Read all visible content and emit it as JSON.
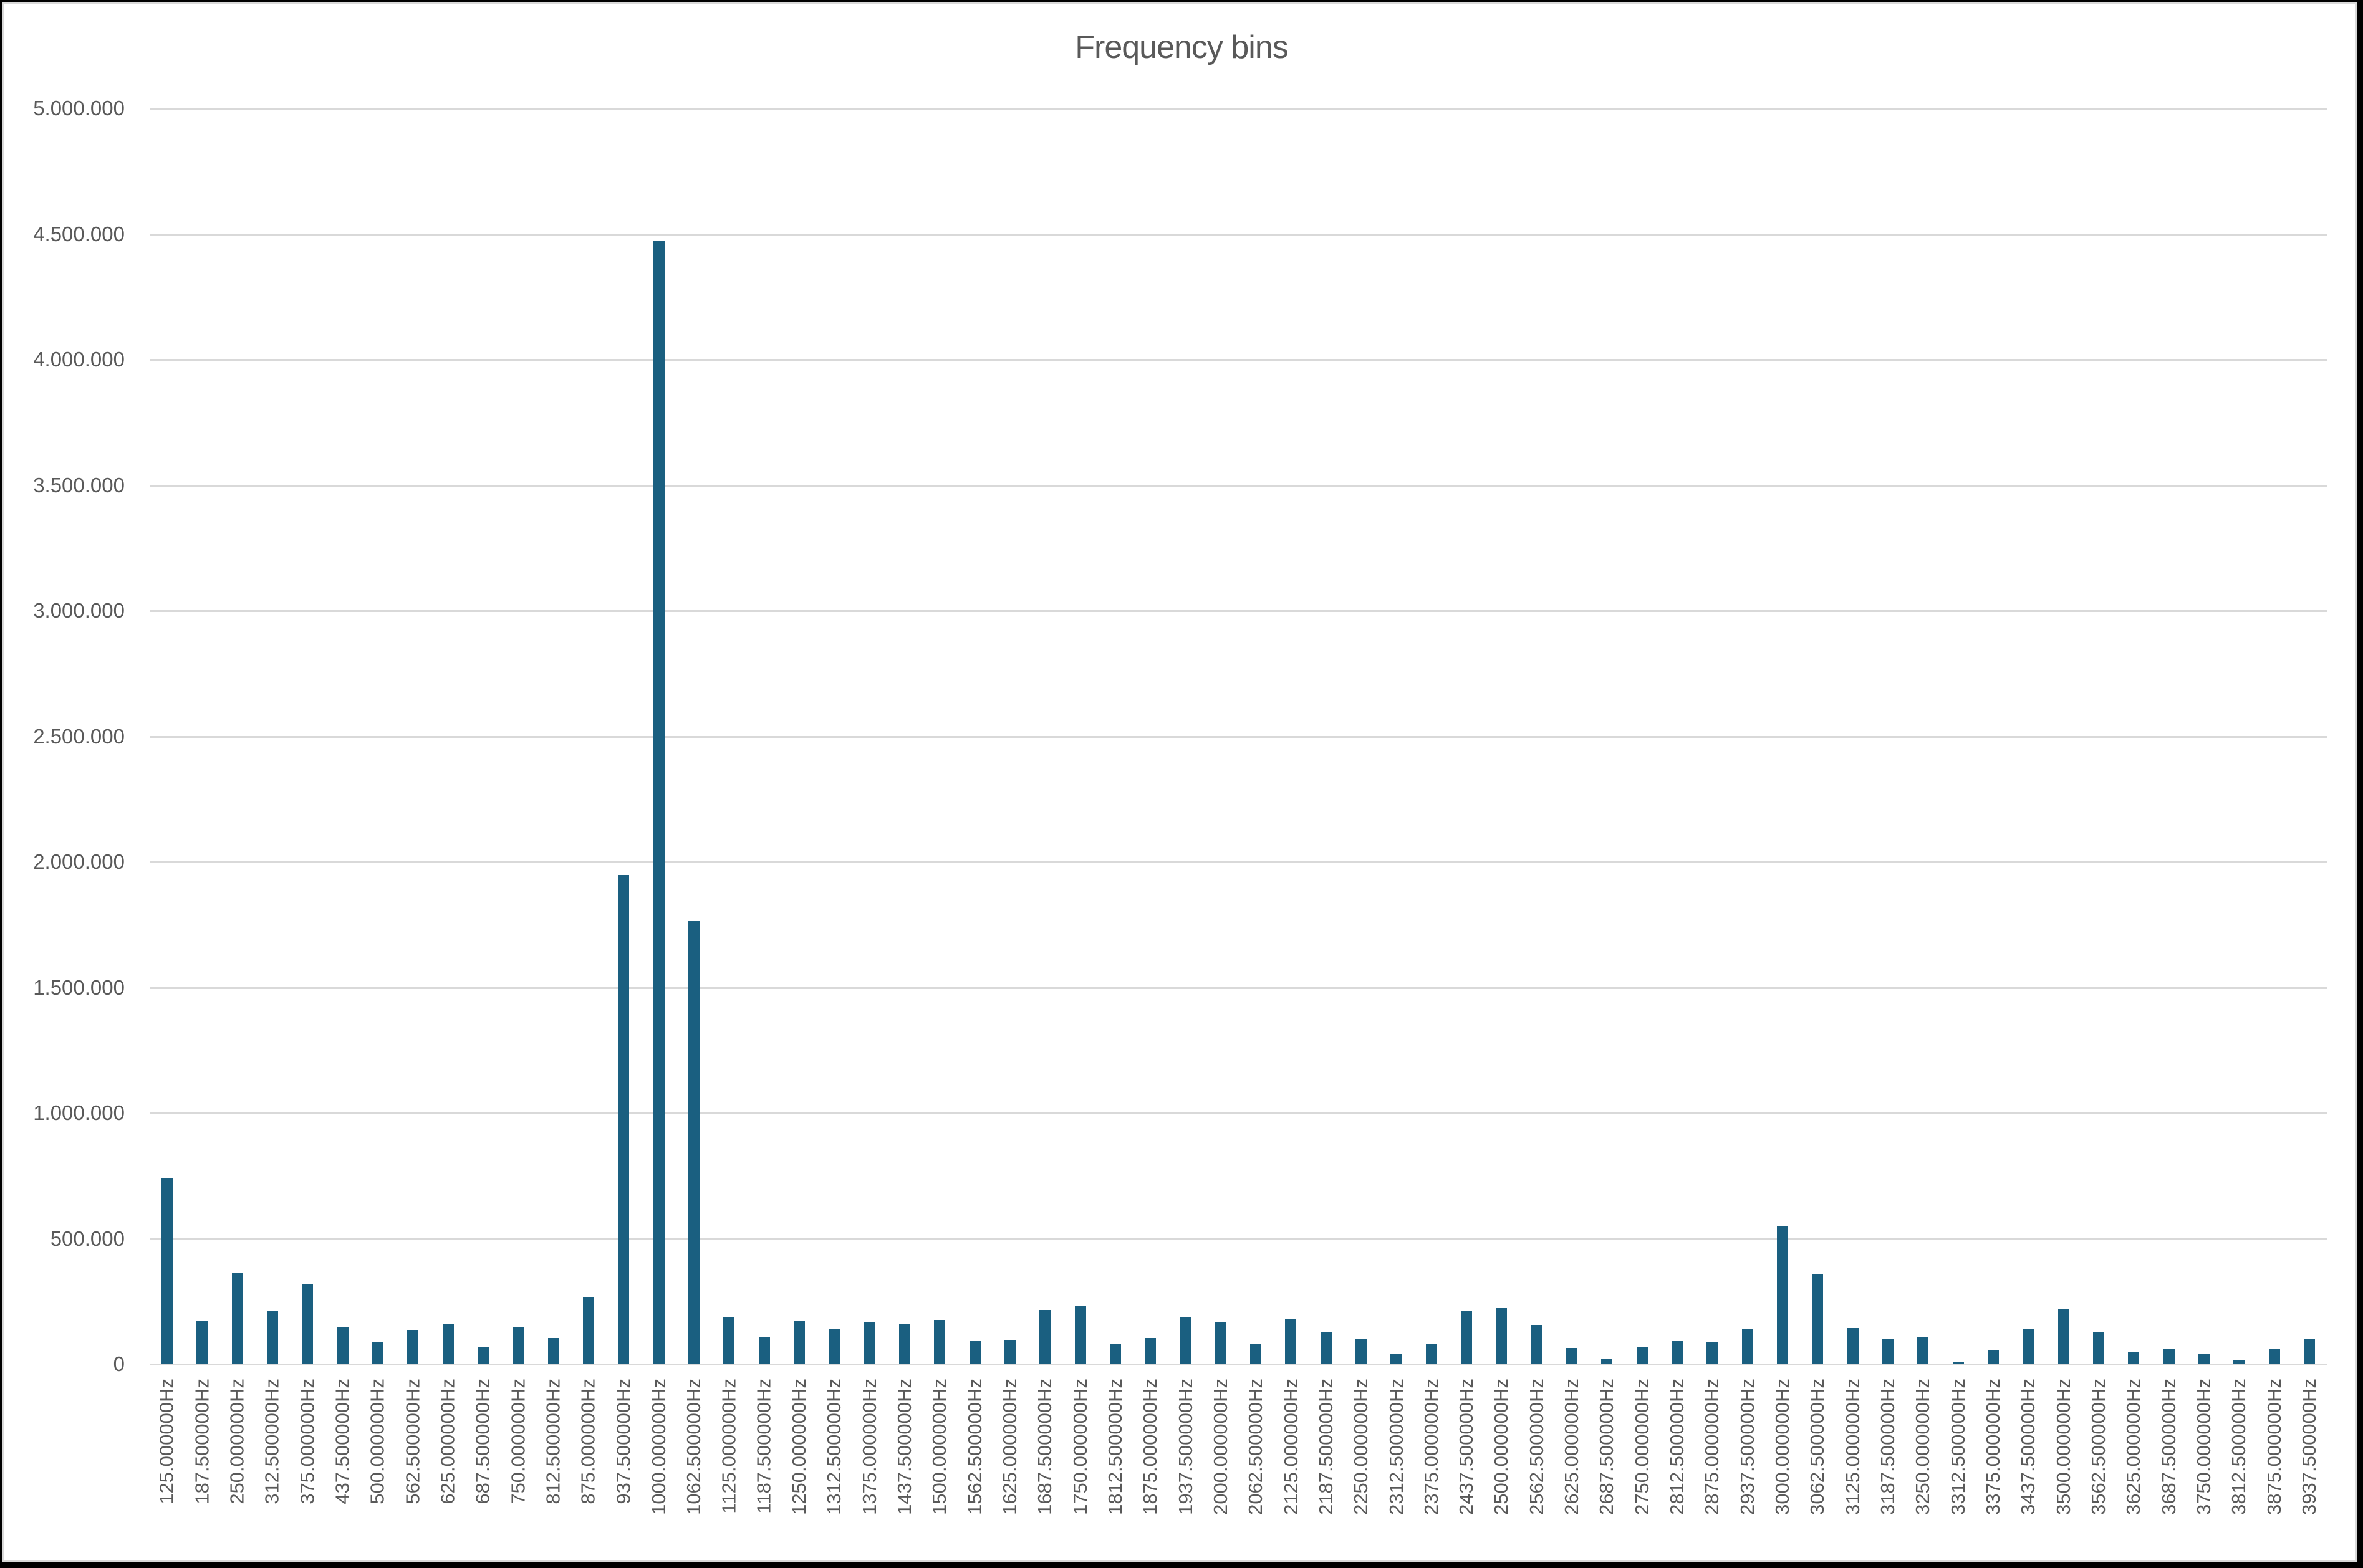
{
  "chart_data": {
    "type": "bar",
    "title": "Frequency bins",
    "xlabel": "",
    "ylabel": "",
    "ylim": [
      0,
      5000000
    ],
    "y_ticks": [
      "0",
      "500.000",
      "1.000.000",
      "1.500.000",
      "2.000.000",
      "2.500.000",
      "3.000.000",
      "3.500.000",
      "4.000.000",
      "4.500.000",
      "5.000.000"
    ],
    "y_tick_values": [
      0,
      500000,
      1000000,
      1500000,
      2000000,
      2500000,
      3000000,
      3500000,
      4000000,
      4500000,
      5000000
    ],
    "grid": true,
    "legend": null,
    "bar_color": "#1a5f80",
    "categories": [
      "125.000000Hz",
      "187.500000Hz",
      "250.000000Hz",
      "312.500000Hz",
      "375.000000Hz",
      "437.500000Hz",
      "500.000000Hz",
      "562.500000Hz",
      "625.000000Hz",
      "687.500000Hz",
      "750.000000Hz",
      "812.500000Hz",
      "875.000000Hz",
      "937.500000Hz",
      "1000.000000Hz",
      "1062.500000Hz",
      "1125.000000Hz",
      "1187.500000Hz",
      "1250.000000Hz",
      "1312.500000Hz",
      "1375.000000Hz",
      "1437.500000Hz",
      "1500.000000Hz",
      "1562.500000Hz",
      "1625.000000Hz",
      "1687.500000Hz",
      "1750.000000Hz",
      "1812.500000Hz",
      "1875.000000Hz",
      "1937.500000Hz",
      "2000.000000Hz",
      "2062.500000Hz",
      "2125.000000Hz",
      "2187.500000Hz",
      "2250.000000Hz",
      "2312.500000Hz",
      "2375.000000Hz",
      "2437.500000Hz",
      "2500.000000Hz",
      "2562.500000Hz",
      "2625.000000Hz",
      "2687.500000Hz",
      "2750.000000Hz",
      "2812.500000Hz",
      "2875.000000Hz",
      "2937.500000Hz",
      "3000.000000Hz",
      "3062.500000Hz",
      "3125.000000Hz",
      "3187.500000Hz",
      "3250.000000Hz",
      "3312.500000Hz",
      "3375.000000Hz",
      "3437.500000Hz",
      "3500.000000Hz",
      "3562.500000Hz",
      "3625.000000Hz",
      "3687.500000Hz",
      "3750.000000Hz",
      "3812.500000Hz",
      "3875.000000Hz",
      "3937.500000Hz"
    ],
    "values": [
      743000,
      173000,
      362000,
      213000,
      320000,
      148000,
      86000,
      137000,
      159000,
      69000,
      146000,
      104000,
      269000,
      1948000,
      4471000,
      1764000,
      188000,
      109000,
      173000,
      138000,
      168000,
      161000,
      176000,
      94000,
      96000,
      216000,
      231000,
      79000,
      104000,
      188000,
      168000,
      81000,
      181000,
      126000,
      99000,
      39000,
      81000,
      213000,
      223000,
      156000,
      64000,
      22000,
      69000,
      94000,
      86000,
      138000,
      551000,
      360000,
      143000,
      99000,
      106000,
      11000,
      56000,
      141000,
      218000,
      126000,
      46000,
      61000,
      39000,
      17000,
      61000,
      99000
    ]
  }
}
